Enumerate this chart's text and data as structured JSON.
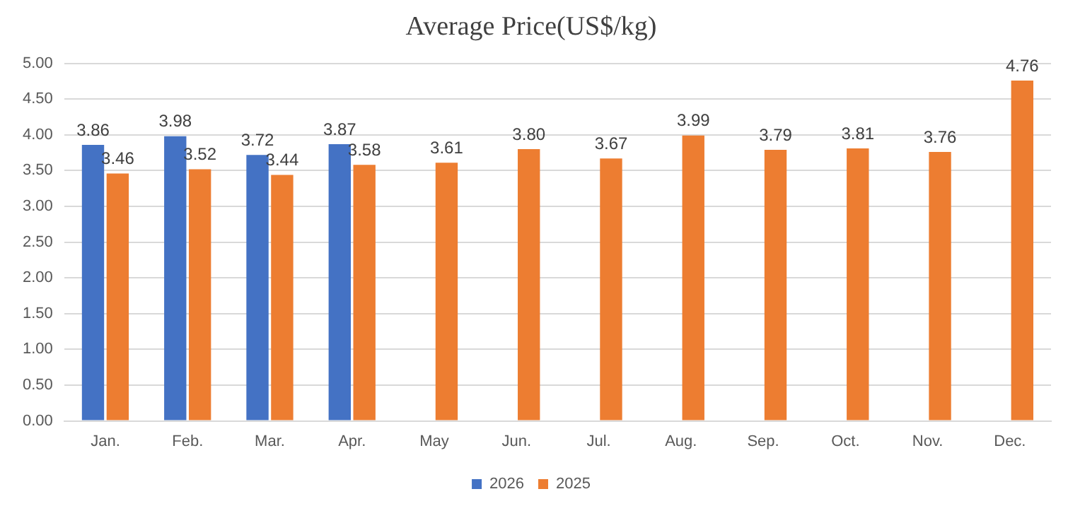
{
  "chart_data": {
    "type": "bar",
    "title": "Average Price(US$/kg)",
    "categories": [
      "Jan.",
      "Feb.",
      "Mar.",
      "Apr.",
      "May",
      "Jun.",
      "Jul.",
      "Aug.",
      "Sep.",
      "Oct.",
      "Nov.",
      "Dec."
    ],
    "series": [
      {
        "name": "2026",
        "color": "#4472c4",
        "values": [
          3.86,
          3.98,
          3.72,
          3.87,
          null,
          null,
          null,
          null,
          null,
          null,
          null,
          null
        ],
        "value_labels": [
          "3.86",
          "3.98",
          "3.72",
          "3.87",
          null,
          null,
          null,
          null,
          null,
          null,
          null,
          null
        ]
      },
      {
        "name": "2025",
        "color": "#ed7d31",
        "values": [
          3.46,
          3.52,
          3.44,
          3.58,
          3.61,
          3.8,
          3.67,
          3.99,
          3.79,
          3.81,
          3.76,
          4.76
        ],
        "value_labels": [
          "3.46",
          "3.52",
          "3.44",
          "3.58",
          "3.61",
          "3.80",
          "3.67",
          "3.99",
          "3.79",
          "3.81",
          "3.76",
          "4.76"
        ]
      }
    ],
    "ylim": [
      0,
      5
    ],
    "yticks": [
      {
        "value": 0,
        "label": "0.00"
      },
      {
        "value": 0.5,
        "label": "0.50"
      },
      {
        "value": 1,
        "label": "1.00"
      },
      {
        "value": 1.5,
        "label": "1.50"
      },
      {
        "value": 2,
        "label": "2.00"
      },
      {
        "value": 2.5,
        "label": "2.50"
      },
      {
        "value": 3,
        "label": "3.00"
      },
      {
        "value": 3.5,
        "label": "3.50"
      },
      {
        "value": 4,
        "label": "4.00"
      },
      {
        "value": 4.5,
        "label": "4.50"
      },
      {
        "value": 5,
        "label": "5.00"
      }
    ],
    "grid": "y",
    "legend": "bottom"
  }
}
